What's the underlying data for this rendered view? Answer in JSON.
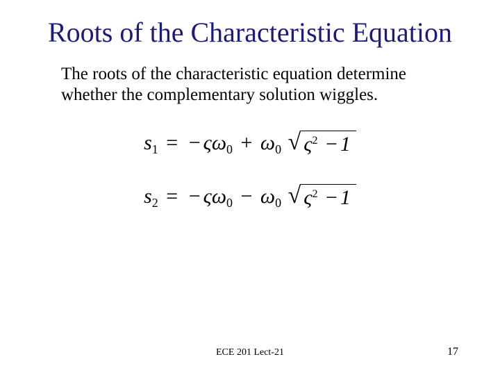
{
  "title": "Roots of the Characteristic Equation",
  "body": "The roots of the characteristic equation determine whether the complementary solution wiggles.",
  "equations": {
    "s1": {
      "lhs_var": "s",
      "lhs_sub": "1",
      "sign": "+"
    },
    "s2": {
      "lhs_var": "s",
      "lhs_sub": "2",
      "sign": "−"
    },
    "eq_str": "=",
    "neg": "−",
    "zeta": "ς",
    "omega": "ω",
    "omega_sub": "0",
    "radicand_a": "ς",
    "rad_exp": "2",
    "minus": "−",
    "one": "1"
  },
  "footer": {
    "center": "ECE 201 Lect-21",
    "page": "17"
  },
  "colors": {
    "title": "#1c1a7a",
    "text": "#000000",
    "bg": "#ffffff"
  },
  "fontsizes": {
    "title": 40,
    "body": 25,
    "eq": 30,
    "footer": 14,
    "page": 16
  }
}
